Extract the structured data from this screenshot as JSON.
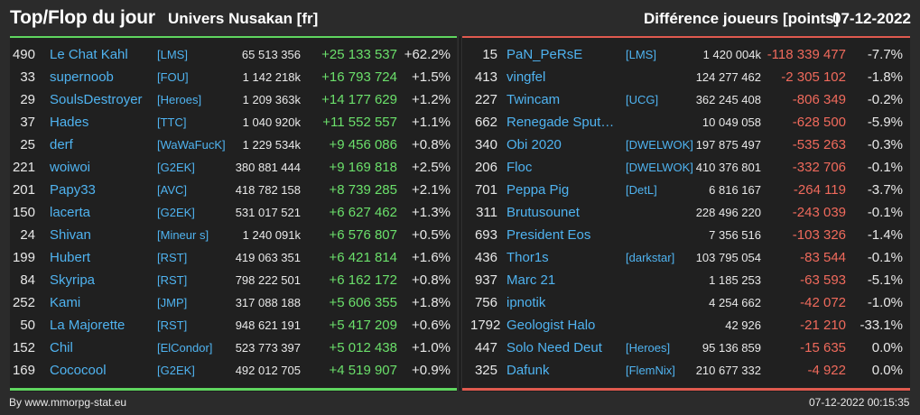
{
  "header": {
    "title": "Top/Flop du jour",
    "server": "Univers Nusakan [fr]",
    "difference_label": "Différence joueurs [points]",
    "date": "07-12-2022"
  },
  "colors": {
    "positive": "#6be06b",
    "negative": "#f06a5c",
    "link": "#4fb3f0"
  },
  "top": [
    {
      "rank": "490",
      "name": "Le Chat Kahl",
      "guild": "[LMS]",
      "score": "65 513 356",
      "diff": "+25 133 537",
      "pct": "+62.2%"
    },
    {
      "rank": "33",
      "name": "supernoob",
      "guild": "[FOU]",
      "score": "1 142 218k",
      "diff": "+16 793 724",
      "pct": "+1.5%"
    },
    {
      "rank": "29",
      "name": "SoulsDestroyer",
      "guild": "[Heroes]",
      "score": "1 209 363k",
      "diff": "+14 177 629",
      "pct": "+1.2%"
    },
    {
      "rank": "37",
      "name": "Hades",
      "guild": "[TTC]",
      "score": "1 040 920k",
      "diff": "+11 552 557",
      "pct": "+1.1%"
    },
    {
      "rank": "25",
      "name": "derf",
      "guild": "[WaWaFucK]",
      "score": "1 229 534k",
      "diff": "+9 456 086",
      "pct": "+0.8%"
    },
    {
      "rank": "221",
      "name": "woiwoi",
      "guild": "[G2EK]",
      "score": "380 881 444",
      "diff": "+9 169 818",
      "pct": "+2.5%"
    },
    {
      "rank": "201",
      "name": "Papy33",
      "guild": "[AVC]",
      "score": "418 782 158",
      "diff": "+8 739 285",
      "pct": "+2.1%"
    },
    {
      "rank": "150",
      "name": "lacerta",
      "guild": "[G2EK]",
      "score": "531 017 521",
      "diff": "+6 627 462",
      "pct": "+1.3%"
    },
    {
      "rank": "24",
      "name": "Shivan",
      "guild": "[Mineur s]",
      "score": "1 240 091k",
      "diff": "+6 576 807",
      "pct": "+0.5%"
    },
    {
      "rank": "199",
      "name": "Hubert",
      "guild": "[RST]",
      "score": "419 063 351",
      "diff": "+6 421 814",
      "pct": "+1.6%"
    },
    {
      "rank": "84",
      "name": "Skyripa",
      "guild": "[RST]",
      "score": "798 222 501",
      "diff": "+6 162 172",
      "pct": "+0.8%"
    },
    {
      "rank": "252",
      "name": "Kami",
      "guild": "[JMP]",
      "score": "317 088 188",
      "diff": "+5 606 355",
      "pct": "+1.8%"
    },
    {
      "rank": "50",
      "name": "La Majorette",
      "guild": "[RST]",
      "score": "948 621 191",
      "diff": "+5 417 209",
      "pct": "+0.6%"
    },
    {
      "rank": "152",
      "name": "Chil",
      "guild": "[ElCondor]",
      "score": "523 773 397",
      "diff": "+5 012 438",
      "pct": "+1.0%"
    },
    {
      "rank": "169",
      "name": "Cococool",
      "guild": "[G2EK]",
      "score": "492 012 705",
      "diff": "+4 519 907",
      "pct": "+0.9%"
    }
  ],
  "flop": [
    {
      "rank": "15",
      "name": "PaN_PeRsE",
      "guild": "[LMS]",
      "score": "1 420 004k",
      "diff": "-118 339 477",
      "pct": "-7.7%"
    },
    {
      "rank": "413",
      "name": "vingfel",
      "guild": "",
      "score": "124 277 462",
      "diff": "-2 305 102",
      "pct": "-1.8%"
    },
    {
      "rank": "227",
      "name": "Twincam",
      "guild": "[UCG]",
      "score": "362 245 408",
      "diff": "-806 349",
      "pct": "-0.2%"
    },
    {
      "rank": "662",
      "name": "Renegade Sputni...",
      "guild": "",
      "score": "10 049 058",
      "diff": "-628 500",
      "pct": "-5.9%"
    },
    {
      "rank": "340",
      "name": "Obi 2020",
      "guild": "[DWELWOK]",
      "score": "197 875 497",
      "diff": "-535 263",
      "pct": "-0.3%"
    },
    {
      "rank": "206",
      "name": "Floc",
      "guild": "[DWELWOK]",
      "score": "410 376 801",
      "diff": "-332 706",
      "pct": "-0.1%"
    },
    {
      "rank": "701",
      "name": "Peppa Pig",
      "guild": "[DetL]",
      "score": "6 816 167",
      "diff": "-264 119",
      "pct": "-3.7%"
    },
    {
      "rank": "311",
      "name": "Brutusounet",
      "guild": "",
      "score": "228 496 220",
      "diff": "-243 039",
      "pct": "-0.1%"
    },
    {
      "rank": "693",
      "name": "President Eos",
      "guild": "",
      "score": "7 356 516",
      "diff": "-103 326",
      "pct": "-1.4%"
    },
    {
      "rank": "436",
      "name": "Thor1s",
      "guild": "[darkstar]",
      "score": "103 795 054",
      "diff": "-83 544",
      "pct": "-0.1%"
    },
    {
      "rank": "937",
      "name": "Marc 21",
      "guild": "",
      "score": "1 185 253",
      "diff": "-63 593",
      "pct": "-5.1%"
    },
    {
      "rank": "756",
      "name": "ipnotik",
      "guild": "",
      "score": "4 254 662",
      "diff": "-42 072",
      "pct": "-1.0%"
    },
    {
      "rank": "1792",
      "name": "Geologist Halo",
      "guild": "",
      "score": "42 926",
      "diff": "-21 210",
      "pct": "-33.1%"
    },
    {
      "rank": "447",
      "name": "Solo Need Deut",
      "guild": "[Heroes]",
      "score": "95 136 859",
      "diff": "-15 635",
      "pct": "0.0%"
    },
    {
      "rank": "325",
      "name": "Dafunk",
      "guild": "[FlemNix]",
      "score": "210 677 332",
      "diff": "-4 922",
      "pct": "0.0%"
    }
  ],
  "footer": {
    "source": "By www.mmorpg-stat.eu",
    "timestamp": "07-12-2022 00:15:35"
  }
}
